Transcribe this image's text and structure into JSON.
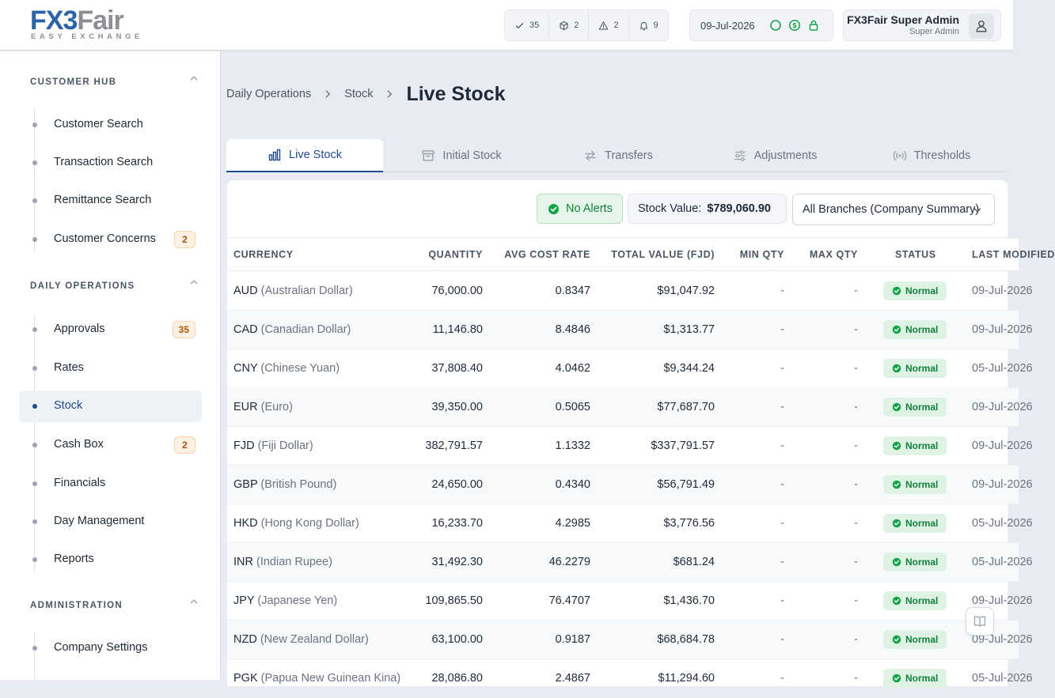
{
  "brand": {
    "logo_fx": "FX",
    "logo_3": "3",
    "logo_fair": "Fair",
    "tagline": "EASY EXCHANGE",
    "primary_color": "#2a63a8",
    "secondary_color": "#8c8f93"
  },
  "header": {
    "stats": [
      {
        "icon": "check-icon",
        "count": "35"
      },
      {
        "icon": "box-icon",
        "count": "2"
      },
      {
        "icon": "warning-icon",
        "count": "2"
      },
      {
        "icon": "bell-icon",
        "count": "9"
      }
    ],
    "date": "09-Jul-2026",
    "status_icons": [
      "circle-status-icon",
      "dollar-icon",
      "lock-icon"
    ],
    "user_name": "FX3Fair Super Admin",
    "user_role": "Super Admin"
  },
  "sidebar": {
    "sections": [
      {
        "title": "CUSTOMER HUB",
        "items": [
          {
            "label": "Customer Search",
            "badge": ""
          },
          {
            "label": "Transaction Search",
            "badge": ""
          },
          {
            "label": "Remittance Search",
            "badge": ""
          },
          {
            "label": "Customer Concerns",
            "badge": "2"
          }
        ]
      },
      {
        "title": "DAILY OPERATIONS",
        "items": [
          {
            "label": "Approvals",
            "badge": "35"
          },
          {
            "label": "Rates",
            "badge": ""
          },
          {
            "label": "Stock",
            "badge": "",
            "active": true
          },
          {
            "label": "Cash Box",
            "badge": "2"
          },
          {
            "label": "Financials",
            "badge": ""
          },
          {
            "label": "Day Management",
            "badge": ""
          },
          {
            "label": "Reports",
            "badge": ""
          }
        ]
      },
      {
        "title": "ADMINISTRATION",
        "items": [
          {
            "label": "Company Settings",
            "badge": ""
          }
        ]
      }
    ]
  },
  "breadcrumb": {
    "items": [
      "Daily Operations",
      "Stock"
    ],
    "current": "Live Stock"
  },
  "tabs": [
    {
      "label": "Live Stock",
      "icon": "bar-chart-icon",
      "active": true
    },
    {
      "label": "Initial Stock",
      "icon": "archive-icon"
    },
    {
      "label": "Transfers",
      "icon": "transfer-arrows-icon"
    },
    {
      "label": "Adjustments",
      "icon": "sliders-icon"
    },
    {
      "label": "Thresholds",
      "icon": "signal-icon"
    }
  ],
  "toolbar": {
    "alerts_label": "No Alerts",
    "stock_value_label": "Stock Value:",
    "stock_value": "$789,060.90",
    "branch_select": "All Branches (Company Summary)"
  },
  "table": {
    "columns": [
      "CURRENCY",
      "QUANTITY",
      "AVG COST RATE",
      "TOTAL VALUE (FJD)",
      "MIN QTY",
      "MAX QTY",
      "STATUS",
      "LAST MODIFIED"
    ],
    "rows": [
      {
        "code": "AUD",
        "name": "(Australian Dollar)",
        "qty": "76,000.00",
        "rate": "0.8347",
        "total": "$91,047.92",
        "min": "-",
        "max": "-",
        "status": "Normal",
        "last": "09-Jul-2026"
      },
      {
        "code": "CAD",
        "name": "(Canadian Dollar)",
        "qty": "11,146.80",
        "rate": "8.4846",
        "total": "$1,313.77",
        "min": "-",
        "max": "-",
        "status": "Normal",
        "last": "09-Jul-2026"
      },
      {
        "code": "CNY",
        "name": "(Chinese Yuan)",
        "qty": "37,808.40",
        "rate": "4.0462",
        "total": "$9,344.24",
        "min": "-",
        "max": "-",
        "status": "Normal",
        "last": "05-Jul-2026"
      },
      {
        "code": "EUR",
        "name": "(Euro)",
        "qty": "39,350.00",
        "rate": "0.5065",
        "total": "$77,687.70",
        "min": "-",
        "max": "-",
        "status": "Normal",
        "last": "09-Jul-2026"
      },
      {
        "code": "FJD",
        "name": "(Fiji Dollar)",
        "qty": "382,791.57",
        "rate": "1.1332",
        "total": "$337,791.57",
        "min": "-",
        "max": "-",
        "status": "Normal",
        "last": "09-Jul-2026"
      },
      {
        "code": "GBP",
        "name": "(British Pound)",
        "qty": "24,650.00",
        "rate": "0.4340",
        "total": "$56,791.49",
        "min": "-",
        "max": "-",
        "status": "Normal",
        "last": "09-Jul-2026"
      },
      {
        "code": "HKD",
        "name": "(Hong Kong Dollar)",
        "qty": "16,233.70",
        "rate": "4.2985",
        "total": "$3,776.56",
        "min": "-",
        "max": "-",
        "status": "Normal",
        "last": "05-Jul-2026"
      },
      {
        "code": "INR",
        "name": "(Indian Rupee)",
        "qty": "31,492.30",
        "rate": "46.2279",
        "total": "$681.24",
        "min": "-",
        "max": "-",
        "status": "Normal",
        "last": "05-Jul-2026"
      },
      {
        "code": "JPY",
        "name": "(Japanese Yen)",
        "qty": "109,865.50",
        "rate": "76.4707",
        "total": "$1,436.70",
        "min": "-",
        "max": "-",
        "status": "Normal",
        "last": "09-Jul-2026"
      },
      {
        "code": "NZD",
        "name": "(New Zealand Dollar)",
        "qty": "63,100.00",
        "rate": "0.9187",
        "total": "$68,684.78",
        "min": "-",
        "max": "-",
        "status": "Normal",
        "last": "09-Jul-2026"
      },
      {
        "code": "PGK",
        "name": "(Papua New Guinean Kina)",
        "qty": "28,086.80",
        "rate": "2.4867",
        "total": "$11,294.60",
        "min": "-",
        "max": "-",
        "status": "Normal",
        "last": "05-Jul-2026"
      }
    ]
  }
}
